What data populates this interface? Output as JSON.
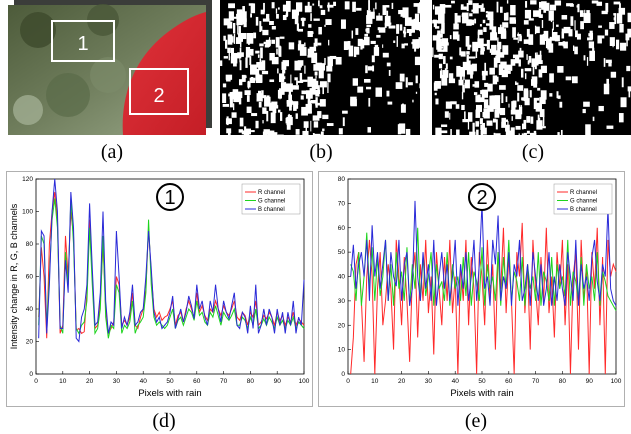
{
  "panels": {
    "a": {
      "label": "(a)",
      "region_labels": [
        "1",
        "2"
      ]
    },
    "b": {
      "label": "(b)"
    },
    "c": {
      "label": "(c)"
    },
    "d": {
      "label": "(d)"
    },
    "e": {
      "label": "(e)"
    }
  },
  "colors": {
    "r": "#ff2a2a",
    "g": "#1ed41e",
    "b": "#2a2ad8"
  },
  "chart_data": [
    {
      "type": "line",
      "badge": "1",
      "xlabel": "Pixels with rain",
      "ylabel": "Intensity change in R, G, B channels",
      "xlim": [
        0,
        100
      ],
      "ylim": [
        0,
        120
      ],
      "xticks": [
        0,
        10,
        20,
        30,
        40,
        50,
        60,
        70,
        80,
        90,
        100
      ],
      "yticks": [
        0,
        20,
        40,
        60,
        80,
        100,
        120
      ],
      "legend_position": "top-right",
      "x": [
        1,
        2,
        3,
        4,
        5,
        6,
        7,
        8,
        9,
        10,
        11,
        12,
        13,
        14,
        15,
        16,
        17,
        18,
        19,
        20,
        21,
        22,
        23,
        24,
        25,
        26,
        27,
        28,
        29,
        30,
        31,
        32,
        33,
        34,
        35,
        36,
        37,
        38,
        39,
        40,
        41,
        42,
        43,
        44,
        45,
        46,
        47,
        48,
        49,
        50,
        51,
        52,
        53,
        54,
        55,
        56,
        57,
        58,
        59,
        60,
        61,
        62,
        63,
        64,
        65,
        66,
        67,
        68,
        69,
        70,
        71,
        72,
        73,
        74,
        75,
        76,
        77,
        78,
        79,
        80,
        81,
        82,
        83,
        84,
        85,
        86,
        87,
        88,
        89,
        90,
        91,
        92,
        93,
        94,
        95,
        96,
        97,
        98,
        99,
        100
      ],
      "series": [
        {
          "name": "R channel",
          "color": "#ff2a2a",
          "values": [
            35,
            78,
            60,
            22,
            80,
            100,
            112,
            95,
            25,
            30,
            85,
            60,
            100,
            85,
            27,
            28,
            25,
            26,
            50,
            95,
            60,
            28,
            30,
            45,
            80,
            40,
            25,
            28,
            32,
            60,
            55,
            30,
            33,
            30,
            35,
            50,
            30,
            28,
            35,
            40,
            52,
            90,
            62,
            40,
            35,
            38,
            33,
            35,
            36,
            40,
            45,
            30,
            36,
            38,
            32,
            40,
            45,
            40,
            35,
            50,
            38,
            42,
            36,
            33,
            40,
            38,
            45,
            40,
            36,
            42,
            38,
            36,
            40,
            45,
            35,
            33,
            38,
            36,
            30,
            38,
            35,
            45,
            30,
            32,
            36,
            34,
            38,
            35,
            30,
            38,
            33,
            36,
            30,
            35,
            32,
            38,
            30,
            34,
            32,
            30
          ]
        },
        {
          "name": "G channel",
          "color": "#1ed41e",
          "values": [
            30,
            85,
            80,
            30,
            60,
            95,
            108,
            90,
            30,
            25,
            75,
            55,
            108,
            80,
            28,
            25,
            30,
            32,
            45,
            90,
            55,
            25,
            28,
            40,
            85,
            35,
            22,
            30,
            28,
            55,
            50,
            25,
            30,
            28,
            32,
            45,
            25,
            30,
            32,
            35,
            50,
            95,
            55,
            35,
            30,
            32,
            30,
            28,
            30,
            35,
            40,
            28,
            33,
            35,
            30,
            35,
            40,
            38,
            33,
            45,
            36,
            38,
            32,
            30,
            38,
            35,
            42,
            36,
            30,
            38,
            35,
            33,
            36,
            40,
            30,
            30,
            35,
            33,
            28,
            35,
            30,
            40,
            28,
            30,
            34,
            30,
            35,
            32,
            28,
            35,
            30,
            33,
            28,
            33,
            30,
            35,
            28,
            32,
            30,
            28
          ]
        },
        {
          "name": "B channel",
          "color": "#2a2ad8",
          "values": [
            22,
            88,
            85,
            25,
            55,
            100,
            120,
            100,
            28,
            28,
            70,
            50,
            112,
            90,
            22,
            20,
            35,
            40,
            55,
            105,
            65,
            30,
            32,
            50,
            100,
            45,
            25,
            32,
            30,
            88,
            60,
            28,
            35,
            30,
            38,
            55,
            30,
            32,
            38,
            40,
            60,
            88,
            65,
            38,
            32,
            35,
            28,
            30,
            32,
            38,
            48,
            28,
            34,
            40,
            32,
            38,
            48,
            42,
            34,
            55,
            40,
            45,
            35,
            30,
            45,
            38,
            55,
            40,
            32,
            45,
            38,
            34,
            42,
            50,
            30,
            28,
            38,
            35,
            25,
            42,
            28,
            55,
            25,
            30,
            40,
            30,
            40,
            35,
            25,
            40,
            30,
            38,
            25,
            38,
            30,
            45,
            25,
            35,
            30,
            58
          ]
        }
      ]
    },
    {
      "type": "line",
      "badge": "2",
      "xlabel": "Pixels with rain",
      "ylabel": "",
      "xlim": [
        0,
        100
      ],
      "ylim": [
        0,
        80
      ],
      "xticks": [
        0,
        10,
        20,
        30,
        40,
        50,
        60,
        70,
        80,
        90,
        100
      ],
      "yticks": [
        0,
        10,
        20,
        30,
        40,
        50,
        60,
        70,
        80
      ],
      "legend_position": "top-right",
      "x": [
        1,
        2,
        3,
        4,
        5,
        6,
        7,
        8,
        9,
        10,
        11,
        12,
        13,
        14,
        15,
        16,
        17,
        18,
        19,
        20,
        21,
        22,
        23,
        24,
        25,
        26,
        27,
        28,
        29,
        30,
        31,
        32,
        33,
        34,
        35,
        36,
        37,
        38,
        39,
        40,
        41,
        42,
        43,
        44,
        45,
        46,
        47,
        48,
        49,
        50,
        51,
        52,
        53,
        54,
        55,
        56,
        57,
        58,
        59,
        60,
        61,
        62,
        63,
        64,
        65,
        66,
        67,
        68,
        69,
        70,
        71,
        72,
        73,
        74,
        75,
        76,
        77,
        78,
        79,
        80,
        81,
        82,
        83,
        84,
        85,
        86,
        87,
        88,
        89,
        90,
        91,
        92,
        93,
        94,
        95,
        96,
        97,
        98,
        99,
        100
      ],
      "series": [
        {
          "name": "R channel",
          "color": "#ff2a2a",
          "values": [
            0,
            15,
            45,
            50,
            30,
            5,
            40,
            55,
            40,
            0,
            35,
            50,
            20,
            30,
            45,
            35,
            10,
            55,
            40,
            20,
            48,
            30,
            5,
            40,
            50,
            15,
            45,
            30,
            55,
            25,
            40,
            8,
            50,
            35,
            20,
            48,
            30,
            55,
            25,
            40,
            0,
            45,
            30,
            55,
            20,
            48,
            35,
            0,
            50,
            40,
            20,
            55,
            30,
            45,
            10,
            50,
            35,
            60,
            25,
            48,
            30,
            0,
            50,
            40,
            62,
            25,
            45,
            10,
            55,
            35,
            20,
            48,
            30,
            60,
            25,
            40,
            15,
            50,
            35,
            55,
            20,
            45,
            0,
            40,
            50,
            10,
            55,
            30,
            45,
            0,
            50,
            35,
            60,
            20,
            48,
            0,
            55,
            40,
            45,
            42
          ]
        },
        {
          "name": "G channel",
          "color": "#1ed41e",
          "values": [
            45,
            42,
            30,
            50,
            28,
            40,
            58,
            35,
            52,
            30,
            48,
            32,
            40,
            55,
            30,
            45,
            28,
            50,
            35,
            42,
            30,
            52,
            28,
            45,
            35,
            60,
            30,
            48,
            32,
            40,
            50,
            28,
            45,
            35,
            38,
            30,
            50,
            28,
            45,
            35,
            40,
            30,
            48,
            32,
            50,
            28,
            42,
            38,
            30,
            52,
            28,
            45,
            35,
            40,
            30,
            50,
            28,
            48,
            35,
            55,
            30,
            42,
            38,
            30,
            48,
            28,
            45,
            35,
            40,
            30,
            50,
            28,
            42,
            38,
            30,
            48,
            28,
            45,
            35,
            40,
            32,
            55,
            28,
            42,
            38,
            30,
            48,
            28,
            45,
            35,
            40,
            30,
            50,
            28,
            42,
            38,
            32,
            30,
            28,
            26
          ]
        },
        {
          "name": "B channel",
          "color": "#2a2ad8",
          "values": [
            40,
            53,
            35,
            45,
            50,
            40,
            55,
            30,
            61,
            40,
            50,
            35,
            45,
            55,
            30,
            50,
            40,
            36,
            55,
            30,
            45,
            50,
            28,
            35,
            71,
            40,
            30,
            50,
            35,
            45,
            30,
            55,
            28,
            40,
            50,
            35,
            45,
            30,
            40,
            55,
            28,
            45,
            35,
            50,
            30,
            40,
            55,
            30,
            45,
            70,
            35,
            40,
            28,
            55,
            45,
            65,
            30,
            40,
            35,
            50,
            28,
            45,
            40,
            55,
            30,
            35,
            45,
            28,
            50,
            40,
            30,
            45,
            28,
            35,
            50,
            28,
            40,
            30,
            45,
            35,
            28,
            50,
            40,
            30,
            55,
            28,
            45,
            35,
            40,
            30,
            48,
            55,
            38,
            30,
            45,
            40,
            68,
            35,
            30,
            28
          ]
        }
      ]
    }
  ]
}
